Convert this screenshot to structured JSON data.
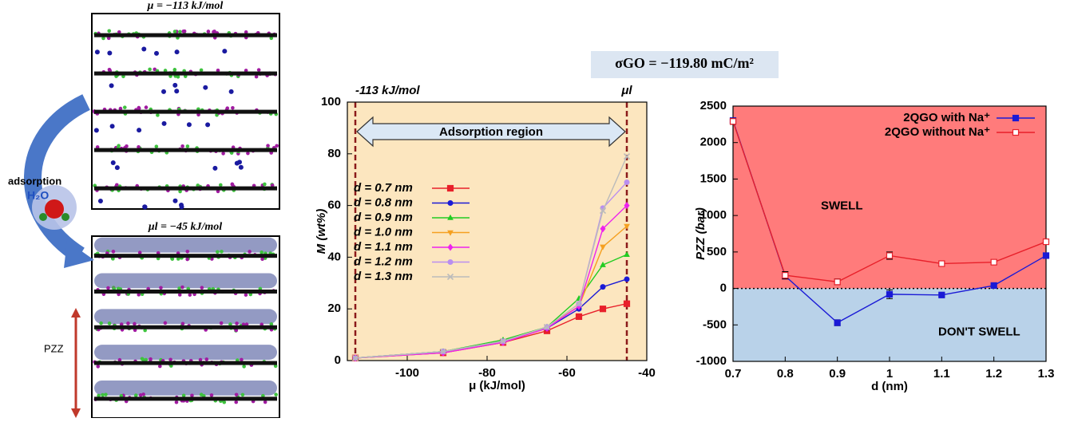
{
  "snapshot": {
    "top_label": "μ = −113 kJ/mol",
    "process": "adsorption",
    "molecule": "H₂O",
    "bottom_label": "μl = −45 kJ/mol",
    "pressure": "PZZ"
  },
  "header": "σGO = −119.80 mC/m²",
  "chart_data": [
    {
      "type": "line",
      "x_label": "μ (kJ/mol)",
      "y_label": "M (wt%)",
      "x": [
        -113,
        -91,
        -76,
        -65,
        -57,
        -51,
        -45
      ],
      "xlim": [
        -115,
        -40
      ],
      "xticks": [
        -100,
        -80,
        -60,
        -40
      ],
      "ylim": [
        0,
        100
      ],
      "yticks": [
        0,
        20,
        40,
        60,
        80,
        100
      ],
      "grid": false,
      "background": "#fce6bf",
      "legend": "left",
      "vlines": [
        {
          "value": -113,
          "label": "-113 kJ/mol"
        },
        {
          "value": -45,
          "label": "μl"
        }
      ],
      "region_label": "Adsorption region",
      "series": [
        {
          "name": "d = 0.7 nm",
          "color": "#e8202a",
          "marker": "square",
          "values": [
            1,
            3,
            7,
            11.5,
            17,
            20,
            22
          ]
        },
        {
          "name": "d = 0.8 nm",
          "color": "#1a1ad6",
          "marker": "circle",
          "values": [
            1,
            3.5,
            7.5,
            12.5,
            20,
            28.5,
            31.5
          ]
        },
        {
          "name": "d = 0.9 nm",
          "color": "#22cc22",
          "marker": "triangle",
          "values": [
            1,
            3.5,
            8,
            13,
            24,
            37,
            41
          ]
        },
        {
          "name": "d = 1.0 nm",
          "color": "#f5a020",
          "marker": "triangle-down",
          "values": [
            1,
            3,
            7,
            13,
            21,
            44,
            52
          ]
        },
        {
          "name": "d = 1.1 nm",
          "color": "#ee22ee",
          "marker": "diamond",
          "values": [
            1,
            3,
            7,
            12.5,
            21,
            51,
            60
          ]
        },
        {
          "name": "d = 1.2 nm",
          "color": "#b98ef0",
          "marker": "circle",
          "values": [
            1,
            3.5,
            7.5,
            13,
            22,
            59,
            69
          ]
        },
        {
          "name": "d = 1.3 nm",
          "color": "#bbbbbb",
          "marker": "cross",
          "values": [
            1,
            3.5,
            7.5,
            13,
            22,
            58,
            79
          ]
        }
      ]
    },
    {
      "type": "line",
      "x_label": "d (nm)",
      "y_label": "PZZ (bar)",
      "x": [
        0.7,
        0.8,
        0.9,
        1,
        1.1,
        1.2,
        1.3
      ],
      "xlim": [
        0.7,
        1.3
      ],
      "xticks": [
        0.7,
        0.8,
        0.9,
        1,
        1.1,
        1.2,
        1.3
      ],
      "ylim": [
        -1000,
        2500
      ],
      "yticks": [
        -1000,
        -500,
        0,
        500,
        1000,
        1500,
        2000,
        2500
      ],
      "grid": false,
      "legend": "upper right",
      "threshold": 0,
      "region_labels": [
        "SWELL",
        "DON'T SWELL"
      ],
      "region_colors": [
        "#ff7b7b",
        "#b9d2e9"
      ],
      "series": [
        {
          "name": "2QGO with Na⁺",
          "color": "#1a1ad6",
          "marker": "square",
          "values": [
            2300,
            170,
            -470,
            -80,
            -90,
            40,
            450
          ],
          "errors": [
            40,
            40,
            40,
            60,
            20,
            20,
            20
          ]
        },
        {
          "name": "2QGO without Na⁺",
          "color": "#e8202a",
          "marker": "square-open",
          "values": [
            2290,
            180,
            90,
            450,
            340,
            360,
            640
          ],
          "errors": [
            40,
            50,
            40,
            50,
            30,
            30,
            20
          ]
        }
      ]
    }
  ]
}
